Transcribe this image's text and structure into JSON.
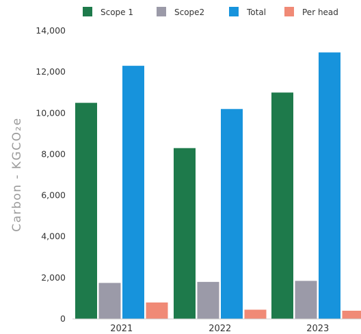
{
  "chart_data": {
    "type": "bar",
    "categories": [
      "2021",
      "2022",
      "2023"
    ],
    "series": [
      {
        "name": "Scope 1",
        "color": "#1e7a4b",
        "values": [
          10500,
          8300,
          11000
        ]
      },
      {
        "name": "Scope2",
        "color": "#9b9aa8",
        "values": [
          1750,
          1800,
          1850
        ]
      },
      {
        "name": "Total",
        "color": "#1793dc",
        "values": [
          12300,
          10200,
          12950
        ]
      },
      {
        "name": "Per head",
        "color": "#f08a76",
        "values": [
          800,
          450,
          400
        ]
      }
    ],
    "yticks": [
      "0",
      "2,000",
      "4,000",
      "6,000",
      "8,000",
      "10,000",
      "12,000",
      "14,000"
    ],
    "ylim": [
      0,
      14000
    ],
    "ylabel": "Carbon - KGCO₂e",
    "legend_position": "top",
    "grid": false
  }
}
